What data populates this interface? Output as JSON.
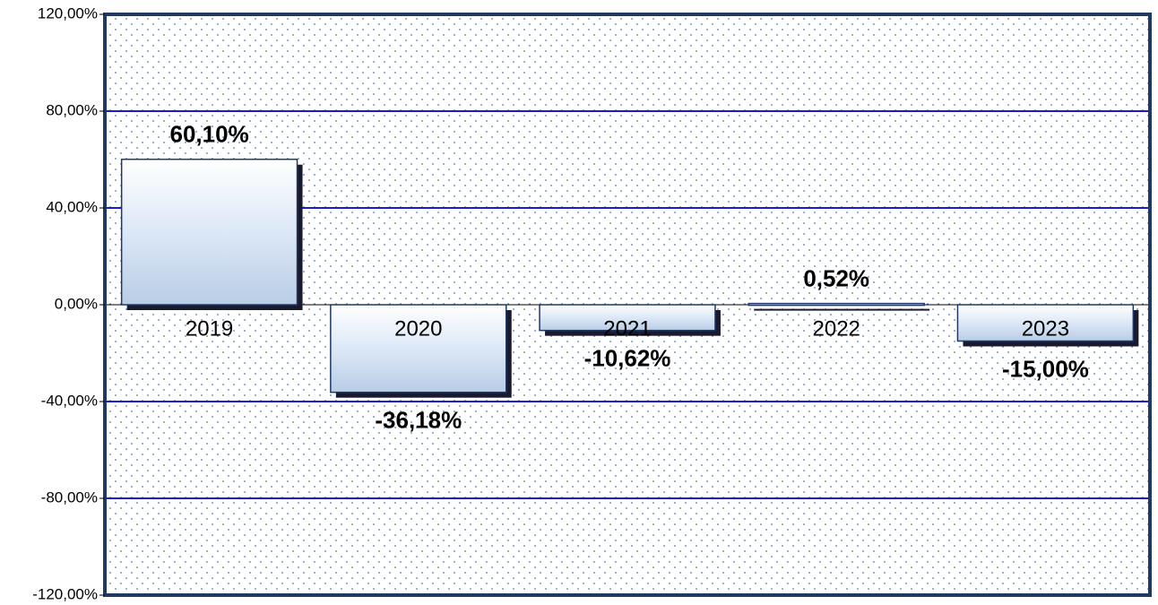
{
  "chart_data": {
    "type": "bar",
    "categories": [
      "2019",
      "2020",
      "2021",
      "2022",
      "2023"
    ],
    "values": [
      60.1,
      -36.18,
      -10.62,
      0.52,
      -15
    ],
    "value_labels": [
      "60,10%",
      "-36,18%",
      "-10,62%",
      "0,52%",
      "-15,00%"
    ],
    "color": "#dce8f7",
    "ylim": [
      -120,
      120
    ],
    "yticks": [
      {
        "value": -120,
        "label": "-120,00%"
      },
      {
        "value": -80,
        "label": "-80,00%"
      },
      {
        "value": -40,
        "label": "-40,00%"
      },
      {
        "value": 0,
        "label": "0,00%"
      },
      {
        "value": 40,
        "label": "40,00%"
      },
      {
        "value": 80,
        "label": "80,00%"
      },
      {
        "value": 120,
        "label": "120,00%"
      }
    ],
    "grid": true
  }
}
